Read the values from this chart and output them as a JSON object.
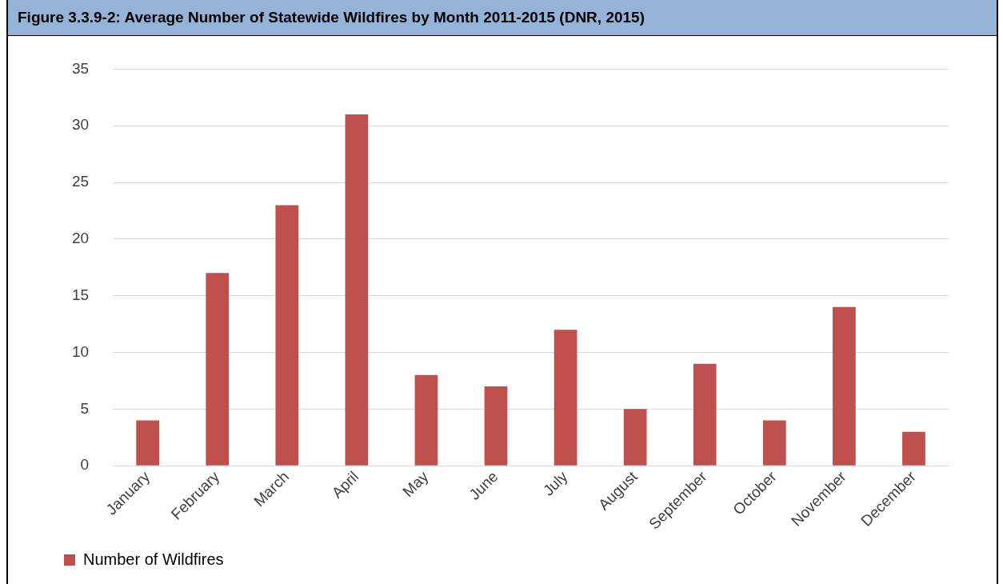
{
  "chart_data": {
    "type": "bar",
    "title": "Figure 3.3.9-2:  Average Number of Statewide Wildfires by Month 2011-2015 (DNR, 2015)",
    "categories": [
      "January",
      "February",
      "March",
      "April",
      "May",
      "June",
      "July",
      "August",
      "September",
      "October",
      "November",
      "December"
    ],
    "series": [
      {
        "name": "Number of Wildfires",
        "color": "#c0504d",
        "values": [
          4,
          17,
          23,
          31,
          8,
          7,
          12,
          5,
          9,
          4,
          14,
          3
        ]
      }
    ],
    "ylim": [
      0,
      35
    ],
    "yticks": [
      0,
      5,
      10,
      15,
      20,
      25,
      30,
      35
    ],
    "grid": "y",
    "legend": "bottom left"
  }
}
